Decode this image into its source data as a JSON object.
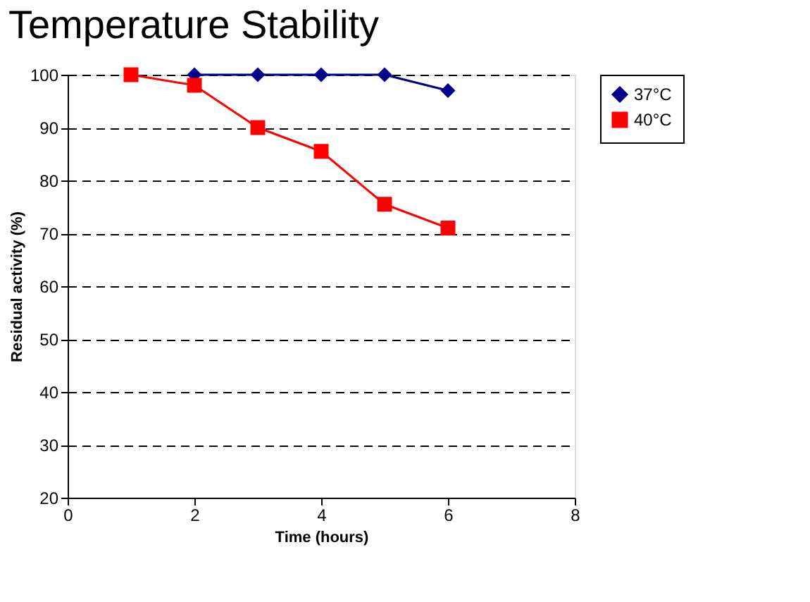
{
  "chart_data": {
    "type": "line",
    "title": "Temperature Stability",
    "xlabel": "Time (hours)",
    "ylabel": "Residual activity (%)",
    "x": [
      1,
      2,
      3,
      4,
      5,
      6
    ],
    "series": [
      {
        "name": "37°C",
        "color": "#00008b",
        "marker": "diamond",
        "values": [
          null,
          100,
          100,
          100,
          100,
          97
        ]
      },
      {
        "name": "40°C",
        "color": "#ff0000",
        "marker": "square",
        "values": [
          100,
          98,
          90,
          85.5,
          75.5,
          71
        ]
      }
    ],
    "xlim": [
      0,
      8
    ],
    "xticks": [
      0,
      2,
      4,
      6,
      8
    ],
    "ylim": [
      20,
      100
    ],
    "yticks": [
      20,
      30,
      40,
      50,
      60,
      70,
      80,
      90,
      100
    ],
    "grid": "y",
    "legend": "right"
  }
}
